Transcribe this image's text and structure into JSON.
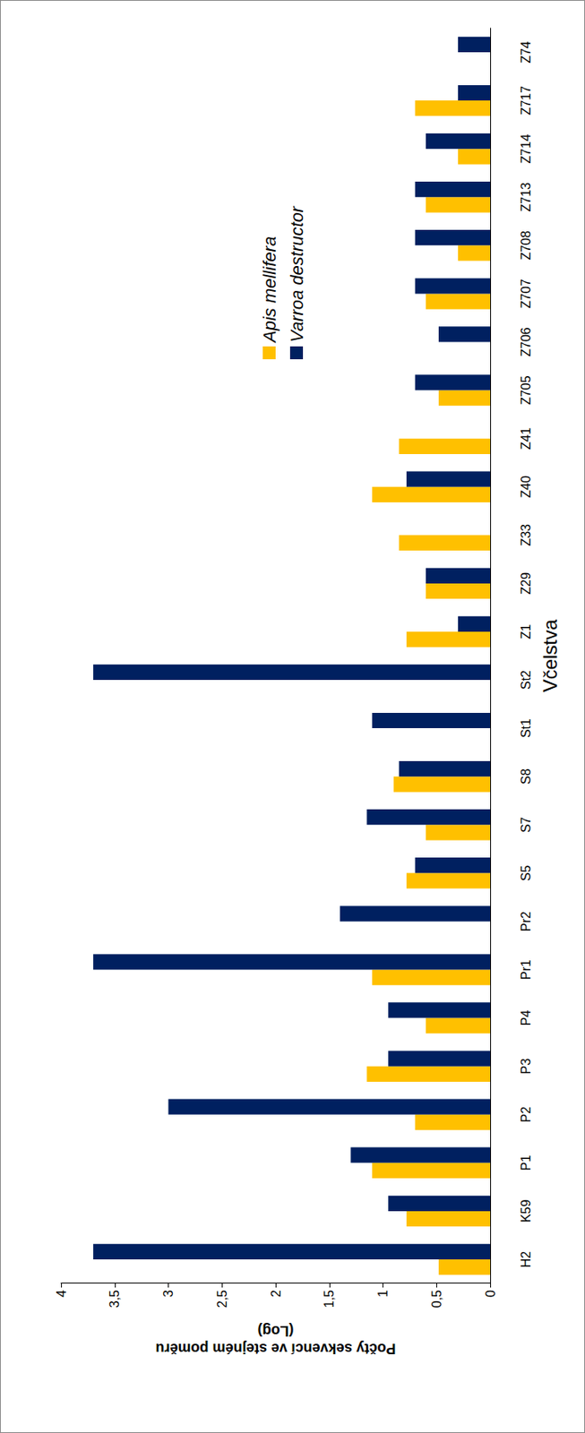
{
  "chart_data": {
    "type": "bar",
    "x_label": "Včelstva",
    "y_label": "Počty sekvencí ve stejném poměru (Log)",
    "categories": [
      "H2",
      "K59",
      "P1",
      "P2",
      "P3",
      "P4",
      "Pr1",
      "Pr2",
      "S5",
      "S7",
      "S8",
      "St1",
      "St2",
      "Z1",
      "Z29",
      "Z33",
      "Z40",
      "Z41",
      "Z705",
      "Z706",
      "Z707",
      "Z708",
      "Z713",
      "Z714",
      "Z717",
      "Z74"
    ],
    "series": [
      {
        "name": "Apis mellifera",
        "color": "#FFC000",
        "values": [
          0.48,
          0.78,
          1.1,
          0.7,
          1.15,
          0.6,
          1.1,
          0,
          0.78,
          0.6,
          0.9,
          0,
          0,
          0.78,
          0.6,
          0.85,
          1.1,
          0.85,
          0.48,
          0,
          0.6,
          0.3,
          0.6,
          0.3,
          0.7,
          0
        ]
      },
      {
        "name": "Varroa destructor",
        "color": "#002060",
        "values": [
          3.7,
          0.95,
          1.3,
          3.0,
          0.95,
          0.95,
          3.7,
          1.4,
          0.7,
          1.15,
          0.85,
          1.1,
          3.7,
          0.3,
          0.6,
          0,
          0.78,
          0,
          0.7,
          0.48,
          0.7,
          0.7,
          0.7,
          0.6,
          0.3,
          0.3
        ]
      }
    ],
    "ylim": [
      0,
      4
    ],
    "yticks": [
      0,
      {
        "value": 0.5,
        "label": "0,5"
      },
      1,
      {
        "value": 1.5,
        "label": "1,5"
      },
      2,
      {
        "value": 2.5,
        "label": "2,5"
      },
      3,
      {
        "value": 3.5,
        "label": "3,5"
      },
      4
    ],
    "grid": false,
    "legend": "right"
  }
}
